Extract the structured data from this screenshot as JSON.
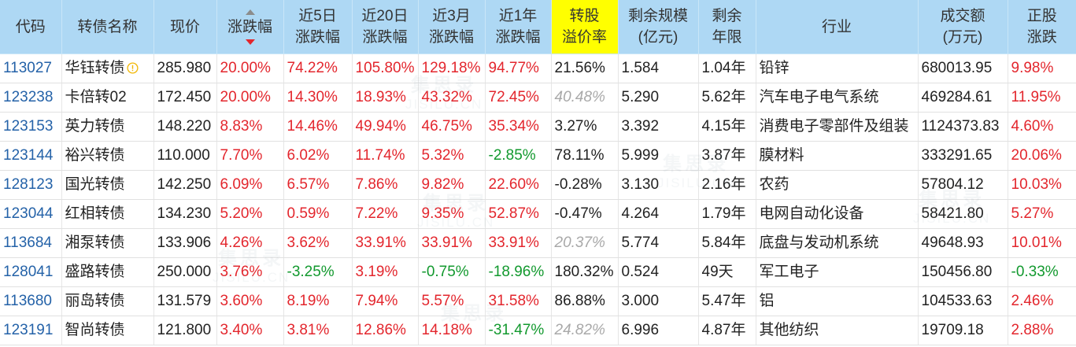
{
  "colors": {
    "header_bg": "#aed8f4",
    "highlight_bg": "#ffff00",
    "up": "#e3262d",
    "down": "#12992e",
    "muted": "#a9a9a9",
    "link": "#2462a8",
    "warning": "#f2b705",
    "sort_inactive": "#8c8c8c",
    "sort_active": "#e3262d"
  },
  "icons": {
    "sort_up": "sort-up-icon",
    "sort_down": "sort-down-icon"
  },
  "watermark": {
    "cn": "集思录",
    "en": "JISILU.CN"
  },
  "table": {
    "headers": {
      "code": [
        "代码"
      ],
      "name": [
        "转债名称"
      ],
      "price": [
        "现价"
      ],
      "change": [
        "涨跌幅"
      ],
      "chg_5d": [
        "近5日",
        "涨跌幅"
      ],
      "chg_20d": [
        "近20日",
        "涨跌幅"
      ],
      "chg_3m": [
        "近3月",
        "涨跌幅"
      ],
      "chg_1y": [
        "近1年",
        "涨跌幅"
      ],
      "premium": [
        "转股",
        "溢价率"
      ],
      "remaining_size": [
        "剩余规模",
        "(亿元)"
      ],
      "remaining_years": [
        "剩余",
        "年限"
      ],
      "industry": [
        "行业"
      ],
      "turnover": [
        "成交额",
        "(万元)"
      ],
      "stock_change": [
        "正股",
        "涨跌"
      ]
    },
    "rows": [
      {
        "code": "113027",
        "name": "华钰转债",
        "name_icon": "warning-icon",
        "price": "285.980",
        "change": "20.00%",
        "chg_5d": "74.22%",
        "chg_20d": "105.80%",
        "chg_3m": "129.18%",
        "chg_1y": "94.77%",
        "premium": "21.56%",
        "remaining_size": "1.584",
        "remaining_years": "1.04年",
        "industry": "铅锌",
        "turnover": "680013.95",
        "stock_change": "9.98%"
      },
      {
        "code": "123238",
        "name": "卡倍转02",
        "price": "172.450",
        "change": "20.00%",
        "chg_5d": "14.30%",
        "chg_20d": "18.93%",
        "chg_3m": "43.32%",
        "chg_1y": "72.45%",
        "premium": "40.48%",
        "premium_muted": true,
        "remaining_size": "5.290",
        "remaining_years": "5.62年",
        "industry": "汽车电子电气系统",
        "turnover": "469284.61",
        "stock_change": "11.95%"
      },
      {
        "code": "123153",
        "name": "英力转债",
        "price": "148.220",
        "change": "8.83%",
        "chg_5d": "14.46%",
        "chg_20d": "49.94%",
        "chg_3m": "46.75%",
        "chg_1y": "35.34%",
        "premium": "3.27%",
        "remaining_size": "3.392",
        "remaining_years": "4.15年",
        "industry": "消费电子零部件及组装",
        "turnover": "1124373.83",
        "stock_change": "4.60%"
      },
      {
        "code": "123144",
        "name": "裕兴转债",
        "price": "110.000",
        "change": "7.70%",
        "chg_5d": "6.02%",
        "chg_20d": "11.74%",
        "chg_3m": "5.32%",
        "chg_1y": "-2.85%",
        "premium": "78.11%",
        "remaining_size": "5.999",
        "remaining_years": "3.87年",
        "industry": "膜材料",
        "turnover": "333291.65",
        "stock_change": "20.06%"
      },
      {
        "code": "128123",
        "name": "国光转债",
        "price": "142.250",
        "change": "6.09%",
        "chg_5d": "6.57%",
        "chg_20d": "7.86%",
        "chg_3m": "9.82%",
        "chg_1y": "22.60%",
        "premium": "-0.28%",
        "remaining_size": "3.130",
        "remaining_years": "2.16年",
        "industry": "农药",
        "turnover": "57804.12",
        "stock_change": "10.03%"
      },
      {
        "code": "123044",
        "name": "红相转债",
        "price": "134.230",
        "change": "5.20%",
        "chg_5d": "0.59%",
        "chg_20d": "7.22%",
        "chg_3m": "9.35%",
        "chg_1y": "52.87%",
        "premium": "-0.47%",
        "remaining_size": "4.264",
        "remaining_years": "1.79年",
        "industry": "电网自动化设备",
        "turnover": "58421.80",
        "stock_change": "5.27%"
      },
      {
        "code": "113684",
        "name": "湘泵转债",
        "price": "133.906",
        "change": "4.26%",
        "chg_5d": "3.62%",
        "chg_20d": "33.91%",
        "chg_3m": "33.91%",
        "chg_1y": "33.91%",
        "premium": "20.37%",
        "premium_muted": true,
        "remaining_size": "5.774",
        "remaining_years": "5.84年",
        "industry": "底盘与发动机系统",
        "turnover": "49648.93",
        "stock_change": "10.01%"
      },
      {
        "code": "128041",
        "name": "盛路转债",
        "price": "250.000",
        "change": "3.76%",
        "chg_5d": "-3.25%",
        "chg_20d": "3.19%",
        "chg_3m": "-0.75%",
        "chg_1y": "-18.96%",
        "premium": "180.32%",
        "remaining_size": "0.524",
        "remaining_years": "49天",
        "industry": "军工电子",
        "turnover": "150456.80",
        "stock_change": "-0.33%"
      },
      {
        "code": "113680",
        "name": "丽岛转债",
        "price": "131.579",
        "change": "3.60%",
        "chg_5d": "8.19%",
        "chg_20d": "7.94%",
        "chg_3m": "5.57%",
        "chg_1y": "31.58%",
        "premium": "86.88%",
        "remaining_size": "3.000",
        "remaining_years": "5.47年",
        "industry": "铝",
        "turnover": "104533.63",
        "stock_change": "2.46%"
      },
      {
        "code": "123191",
        "name": "智尚转债",
        "price": "121.800",
        "change": "3.40%",
        "chg_5d": "3.81%",
        "chg_20d": "12.86%",
        "chg_3m": "14.18%",
        "chg_1y": "-31.47%",
        "premium": "24.82%",
        "premium_muted": true,
        "remaining_size": "6.996",
        "remaining_years": "4.87年",
        "industry": "其他纺织",
        "turnover": "19709.18",
        "stock_change": "2.88%"
      }
    ]
  }
}
